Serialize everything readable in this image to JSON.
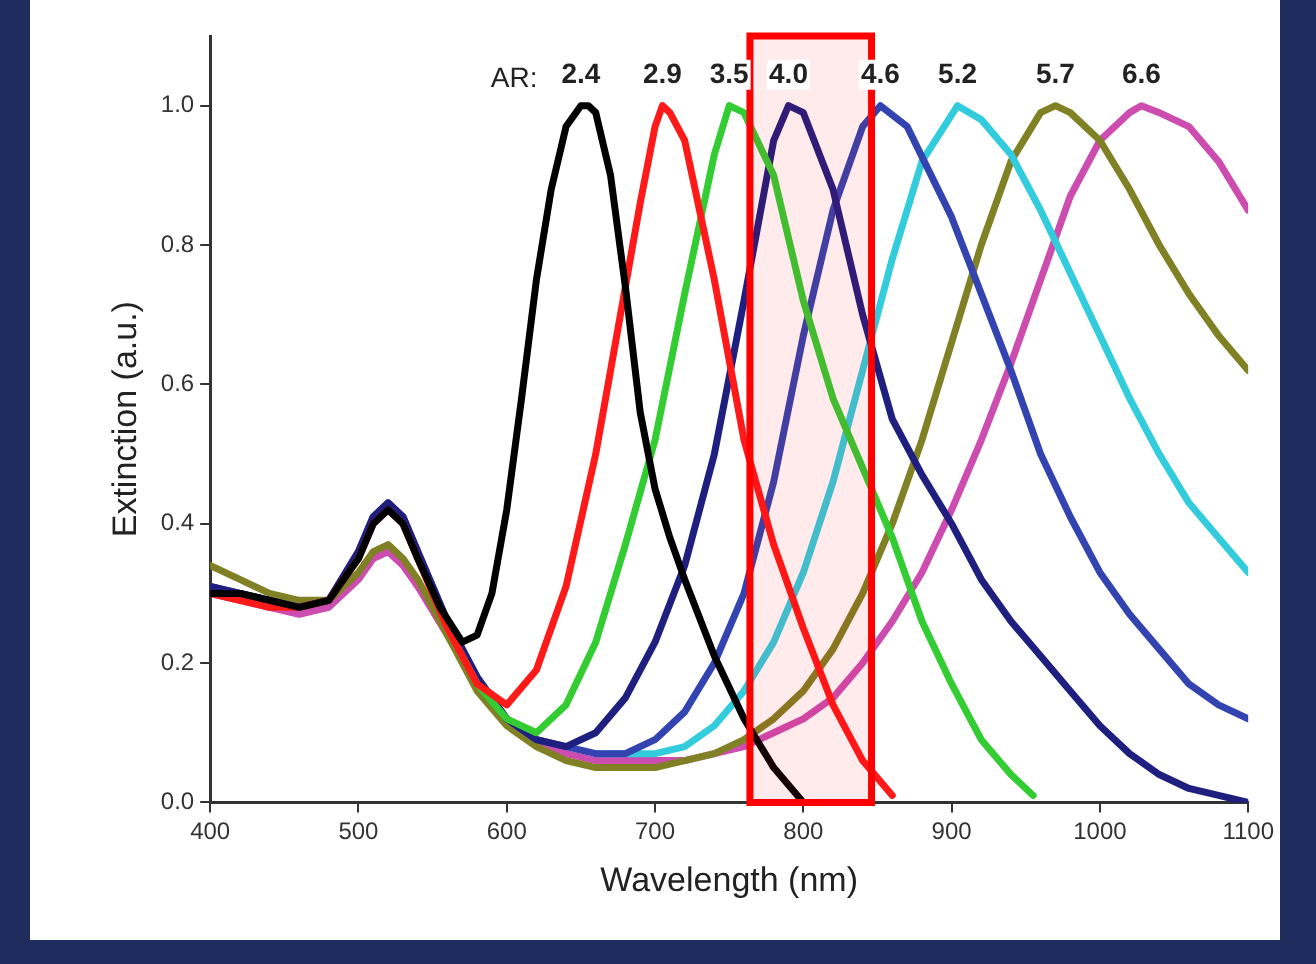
{
  "chart_data": {
    "type": "line",
    "xlabel": "Wavelength (nm)",
    "ylabel": "Extinction (a.u.)",
    "annotations": [
      "AR:"
    ],
    "xlim": [
      400,
      1100
    ],
    "xticks": [
      400,
      500,
      600,
      700,
      800,
      900,
      1000,
      1100
    ],
    "ylim": [
      0,
      1.1
    ],
    "yticks": [
      {
        "value": 0,
        "label": "0.0"
      },
      {
        "value": 0.2,
        "label": "0.2"
      },
      {
        "value": 0.4,
        "label": "0.4"
      },
      {
        "value": 0.6,
        "label": "0.6"
      },
      {
        "value": 0.8,
        "label": "0.8"
      },
      {
        "value": 1,
        "label": "1.0"
      }
    ],
    "grid": false,
    "legend": false,
    "marker": "none",
    "line_style": "solid",
    "bands": [
      {
        "axis": "x",
        "from": 764,
        "to": 846,
        "color": "#ff0000"
      }
    ],
    "series": [
      {
        "name": "2.4",
        "color": "#000000",
        "x": [
          400,
          420,
          440,
          460,
          480,
          500,
          510,
          520,
          530,
          540,
          555,
          570,
          580,
          590,
          600,
          610,
          620,
          630,
          640,
          650,
          655,
          660,
          670,
          680,
          690,
          700,
          710,
          720,
          740,
          760,
          780,
          800
        ],
        "values": [
          0.3,
          0.3,
          0.29,
          0.28,
          0.29,
          0.35,
          0.4,
          0.42,
          0.4,
          0.35,
          0.28,
          0.23,
          0.24,
          0.3,
          0.42,
          0.58,
          0.75,
          0.88,
          0.97,
          1.0,
          1.0,
          0.99,
          0.9,
          0.74,
          0.56,
          0.45,
          0.38,
          0.32,
          0.21,
          0.12,
          0.05,
          0.0
        ]
      },
      {
        "name": "2.9",
        "color": "#ff1a1a",
        "x": [
          400,
          420,
          440,
          460,
          480,
          500,
          510,
          520,
          530,
          540,
          560,
          580,
          600,
          620,
          640,
          660,
          680,
          690,
          700,
          705,
          710,
          720,
          740,
          760,
          780,
          800,
          820,
          840,
          860
        ],
        "values": [
          0.3,
          0.29,
          0.28,
          0.28,
          0.29,
          0.35,
          0.4,
          0.42,
          0.4,
          0.35,
          0.25,
          0.17,
          0.14,
          0.19,
          0.31,
          0.5,
          0.74,
          0.86,
          0.97,
          1.0,
          0.99,
          0.95,
          0.75,
          0.52,
          0.37,
          0.25,
          0.14,
          0.06,
          0.01
        ]
      },
      {
        "name": "3.5",
        "color": "#33cc33",
        "x": [
          560,
          580,
          600,
          620,
          640,
          660,
          680,
          700,
          720,
          740,
          750,
          760,
          780,
          800,
          820,
          840,
          860,
          880,
          900,
          920,
          940,
          955
        ],
        "values": [
          0.25,
          0.17,
          0.12,
          0.1,
          0.14,
          0.23,
          0.37,
          0.52,
          0.73,
          0.93,
          1.0,
          0.99,
          0.9,
          0.72,
          0.58,
          0.48,
          0.38,
          0.26,
          0.17,
          0.09,
          0.04,
          0.01
        ]
      },
      {
        "name": "4.0",
        "color": "#1f1f80",
        "x": [
          400,
          420,
          440,
          460,
          480,
          500,
          510,
          520,
          530,
          540,
          560,
          580,
          600,
          620,
          640,
          660,
          680,
          700,
          720,
          740,
          760,
          780,
          790,
          800,
          820,
          840,
          860,
          880,
          900,
          920,
          940,
          960,
          980,
          1000,
          1020,
          1040,
          1060,
          1080,
          1100
        ],
        "values": [
          0.31,
          0.3,
          0.29,
          0.28,
          0.29,
          0.36,
          0.41,
          0.43,
          0.41,
          0.36,
          0.26,
          0.18,
          0.12,
          0.09,
          0.08,
          0.1,
          0.15,
          0.23,
          0.34,
          0.5,
          0.72,
          0.95,
          1.0,
          0.99,
          0.88,
          0.7,
          0.55,
          0.47,
          0.4,
          0.32,
          0.26,
          0.21,
          0.16,
          0.11,
          0.07,
          0.04,
          0.02,
          0.01,
          0.0
        ]
      },
      {
        "name": "4.6",
        "color": "#3344b0",
        "x": [
          400,
          420,
          440,
          460,
          480,
          500,
          510,
          520,
          530,
          540,
          560,
          580,
          600,
          620,
          640,
          660,
          680,
          700,
          720,
          740,
          760,
          780,
          800,
          820,
          840,
          852,
          870,
          900,
          920,
          940,
          960,
          980,
          1000,
          1020,
          1040,
          1060,
          1080,
          1100
        ],
        "values": [
          0.31,
          0.3,
          0.29,
          0.28,
          0.29,
          0.36,
          0.41,
          0.43,
          0.41,
          0.36,
          0.26,
          0.18,
          0.12,
          0.09,
          0.08,
          0.07,
          0.07,
          0.09,
          0.13,
          0.2,
          0.3,
          0.46,
          0.67,
          0.85,
          0.97,
          1.0,
          0.97,
          0.84,
          0.73,
          0.62,
          0.5,
          0.41,
          0.33,
          0.27,
          0.22,
          0.17,
          0.14,
          0.12
        ]
      },
      {
        "name": "5.2",
        "color": "#33ccdd",
        "x": [
          660,
          680,
          700,
          720,
          740,
          760,
          780,
          800,
          820,
          840,
          860,
          880,
          904,
          920,
          940,
          960,
          980,
          1000,
          1020,
          1040,
          1060,
          1080,
          1100
        ],
        "values": [
          0.07,
          0.07,
          0.07,
          0.08,
          0.11,
          0.16,
          0.23,
          0.33,
          0.46,
          0.62,
          0.78,
          0.92,
          1.0,
          0.98,
          0.93,
          0.85,
          0.76,
          0.67,
          0.58,
          0.5,
          0.43,
          0.38,
          0.33
        ]
      },
      {
        "name": "5.7",
        "color": "#808024",
        "x": [
          400,
          420,
          440,
          460,
          480,
          500,
          510,
          520,
          530,
          540,
          560,
          580,
          600,
          620,
          640,
          660,
          680,
          700,
          720,
          740,
          760,
          780,
          800,
          820,
          840,
          860,
          880,
          900,
          920,
          940,
          960,
          970,
          980,
          1000,
          1020,
          1040,
          1060,
          1080,
          1100
        ],
        "values": [
          0.34,
          0.32,
          0.3,
          0.29,
          0.29,
          0.33,
          0.36,
          0.37,
          0.35,
          0.32,
          0.24,
          0.16,
          0.11,
          0.08,
          0.06,
          0.05,
          0.05,
          0.05,
          0.06,
          0.07,
          0.09,
          0.12,
          0.16,
          0.22,
          0.3,
          0.4,
          0.52,
          0.66,
          0.8,
          0.92,
          0.99,
          1.0,
          0.99,
          0.95,
          0.88,
          0.8,
          0.73,
          0.67,
          0.62
        ]
      },
      {
        "name": "6.6",
        "color": "#cc4cb0",
        "x": [
          400,
          420,
          440,
          460,
          480,
          500,
          510,
          520,
          530,
          540,
          560,
          580,
          600,
          620,
          640,
          660,
          680,
          700,
          720,
          740,
          760,
          780,
          800,
          820,
          840,
          860,
          880,
          900,
          920,
          940,
          960,
          980,
          1000,
          1020,
          1028,
          1040,
          1060,
          1080,
          1100
        ],
        "values": [
          0.3,
          0.29,
          0.28,
          0.27,
          0.28,
          0.32,
          0.35,
          0.36,
          0.34,
          0.31,
          0.24,
          0.17,
          0.12,
          0.09,
          0.07,
          0.06,
          0.06,
          0.06,
          0.06,
          0.07,
          0.08,
          0.1,
          0.12,
          0.15,
          0.2,
          0.26,
          0.33,
          0.42,
          0.52,
          0.63,
          0.75,
          0.87,
          0.95,
          0.99,
          1.0,
          0.99,
          0.97,
          0.92,
          0.85
        ]
      }
    ]
  }
}
